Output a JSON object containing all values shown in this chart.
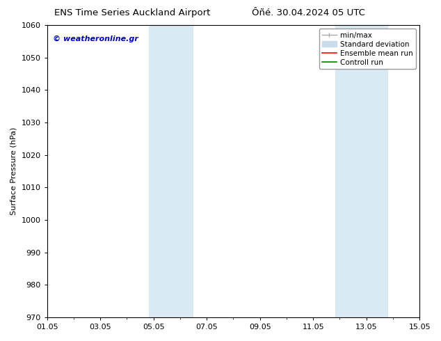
{
  "title_left": "ENS Time Series Auckland Airport",
  "title_right": "Ôñé. 30.04.2024 05 UTC",
  "ylabel": "Surface Pressure (hPa)",
  "ylim": [
    970,
    1060
  ],
  "yticks": [
    970,
    980,
    990,
    1000,
    1010,
    1020,
    1030,
    1040,
    1050,
    1060
  ],
  "xlim": [
    0,
    14
  ],
  "xtick_labels": [
    "01.05",
    "03.05",
    "05.05",
    "07.05",
    "09.05",
    "11.05",
    "13.05",
    "15.05"
  ],
  "xtick_positions_days": [
    0,
    2,
    4,
    6,
    8,
    10,
    12,
    14
  ],
  "shaded_bands": [
    {
      "x_start_day": 3.83,
      "x_end_day": 5.5
    },
    {
      "x_start_day": 10.83,
      "x_end_day": 12.83
    }
  ],
  "shaded_color": "#daeaf5",
  "watermark_text": "© weatheronline.gr",
  "watermark_color": "#0000bb",
  "legend_entries": [
    {
      "label": "min/max",
      "color": "#aaaaaa"
    },
    {
      "label": "Standard deviation",
      "color": "#c8dcea"
    },
    {
      "label": "Ensemble mean run",
      "color": "red"
    },
    {
      "label": "Controll run",
      "color": "green"
    }
  ],
  "background_color": "#ffffff",
  "plot_bg_color": "#ffffff",
  "border_color": "#000000",
  "font_size": 8,
  "title_font_size": 9.5
}
